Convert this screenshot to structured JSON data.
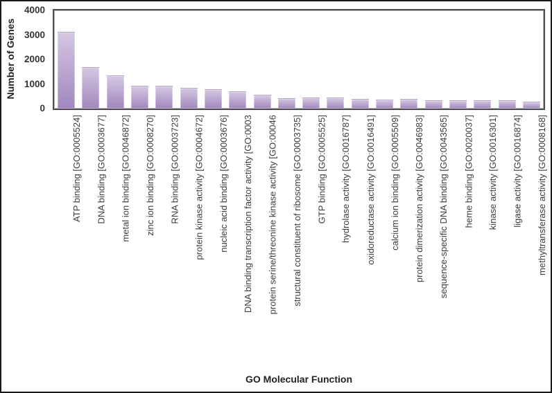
{
  "figure": {
    "outer_border_color": "#19191b",
    "plot_frame_color": "#4e4e50",
    "background": "#ffffff"
  },
  "chart_data": {
    "type": "bar",
    "title": "",
    "xlabel": "GO Molecular Function",
    "ylabel": "Number of Genes",
    "ylim": [
      0,
      4000
    ],
    "yticks": [
      0,
      1000,
      2000,
      3000,
      4000
    ],
    "grid": false,
    "legend": false,
    "bar_color_top": "#d3c7e1",
    "bar_color_bottom": "#a187be",
    "categories": [
      "ATP binding [GO:0005524]",
      "DNA binding [GO:0003677]",
      "metal ion binding [GO:0046872]",
      "zinc ion binding [GO:0008270]",
      "RNA binding [GO:0003723]",
      "protein kinase activity [GO:0004672]",
      "nucleic acid binding [GO:0003676]",
      "DNA binding transcription factor activity [GO:0003",
      "protein serine/threonine kinase activity [GO:00046",
      "structural constituent of ribosome [GO:0003735]",
      "GTP binding [GO:0005525]",
      "hydrolase activity [GO:0016787]",
      "oxidoreductase activity [GO:0016491]",
      "calcium ion binding [GO:0005509]",
      "protein dimerization activity [GO:0046983]",
      "sequence-specific DNA binding [GO:0043565]",
      "heme binding [GO:0020037]",
      "kinase activity [GO:0016301]",
      "ligase activity [GO:0016874]",
      "methyltransferase activity [GO:0008168]"
    ],
    "values": [
      3100,
      1670,
      1330,
      890,
      915,
      830,
      760,
      670,
      530,
      400,
      430,
      410,
      370,
      340,
      365,
      305,
      300,
      315,
      300,
      250
    ]
  }
}
